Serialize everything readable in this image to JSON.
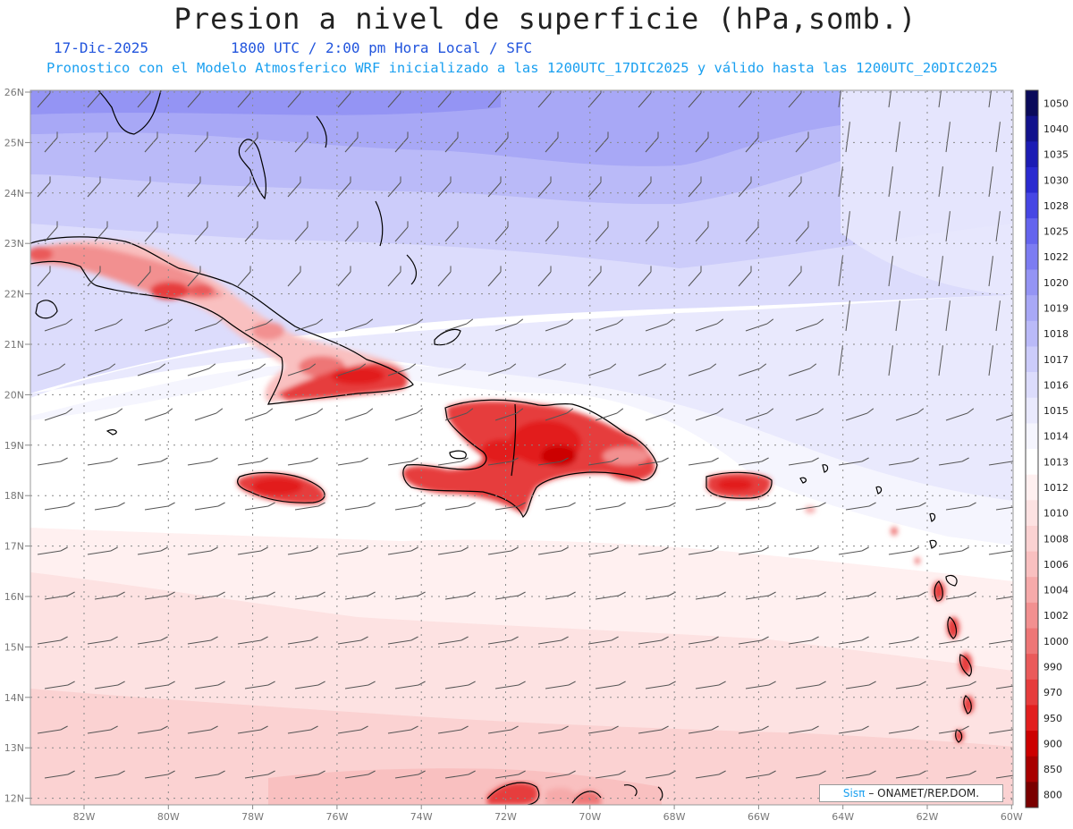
{
  "header": {
    "title": "Presion a nivel de superficie (hPa,somb.)",
    "date": "17-Dic-2025",
    "time": "1800 UTC / 2:00 pm Hora Local / SFC",
    "forecast": "Pronostico con el Modelo Atmosferico WRF inicializado a las 1200UTC_17DIC2025 y válido hasta las  1200UTC_20DIC2025"
  },
  "map": {
    "lon_labels": [
      "82W",
      "80W",
      "78W",
      "76W",
      "74W",
      "72W",
      "70W",
      "68W",
      "66W",
      "64W",
      "62W",
      "60W"
    ],
    "lat_labels": [
      "26N",
      "25N",
      "24N",
      "23N",
      "22N",
      "21N",
      "20N",
      "19N",
      "18N",
      "17N",
      "16N",
      "15N",
      "14N",
      "13N",
      "12N"
    ]
  },
  "colorbar": {
    "levels": [
      "1050",
      "1040",
      "1035",
      "1030",
      "1028",
      "1025",
      "1022",
      "1020",
      "1019",
      "1018",
      "1017",
      "1016",
      "1015",
      "1014",
      "1013",
      "1012",
      "1010",
      "1008",
      "1006",
      "1004",
      "1002",
      "1000",
      "990",
      "970",
      "950",
      "900",
      "850",
      "800"
    ],
    "colors": [
      "#0a0a5a",
      "#12128c",
      "#1c1cb4",
      "#2a2ad0",
      "#4646e4",
      "#6464ee",
      "#7c7cf2",
      "#9494f4",
      "#a8a8f6",
      "#babaf8",
      "#ccccfa",
      "#dcdcfc",
      "#e9e9fd",
      "#f5f5fe",
      "#ffffff",
      "#fff0f0",
      "#fde2e2",
      "#fbd2d2",
      "#f9c0c0",
      "#f6aaaa",
      "#f29090",
      "#ee7676",
      "#ea5a5a",
      "#e63c3c",
      "#e21e1e",
      "#cc0000",
      "#a80000",
      "#7a0000"
    ]
  },
  "logo": {
    "brand": "Sisπ",
    "text": "– ONAMET/REP.DOM."
  }
}
